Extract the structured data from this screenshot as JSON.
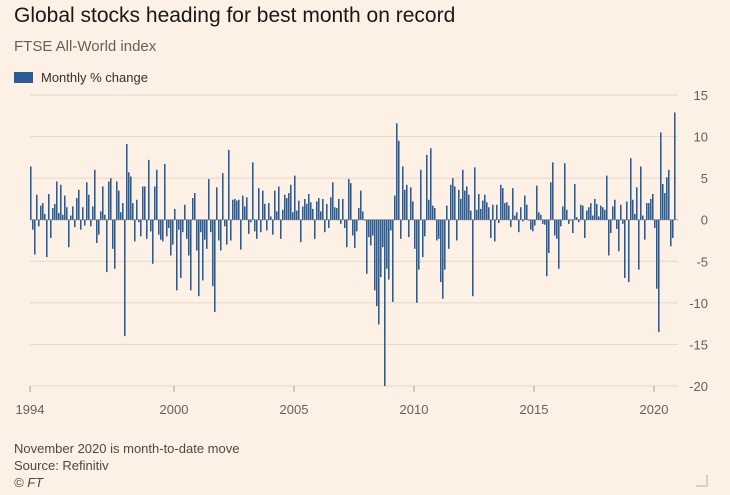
{
  "colors": {
    "bar": "#2a5c96",
    "background": "#fdf1e5",
    "grid": "#e3d7cb",
    "zero_line": "#a7a09a"
  },
  "chart_data": {
    "type": "bar",
    "title": "Global stocks heading for best month on record",
    "subtitle": "FTSE All-World index",
    "legend": [
      "Monthly % change"
    ],
    "legend_position": "top-left",
    "grid": true,
    "ylim": [
      -20,
      15
    ],
    "yticks": [
      15,
      10,
      5,
      0,
      -5,
      -10,
      -15,
      -20
    ],
    "xlim": [
      1994,
      2021
    ],
    "xticks": [
      1994,
      2000,
      2005,
      2010,
      2015,
      2020
    ],
    "y_axis_side": "right",
    "series": [
      {
        "start": "1994-01",
        "end": "2020-11",
        "values": [
          6.4,
          -1.2,
          -4.2,
          3.0,
          -0.8,
          1.7,
          2.0,
          0.7,
          -4.5,
          3.1,
          -2.2,
          1.4,
          1.9,
          4.6,
          0.8,
          4.2,
          0.6,
          2.9,
          1.5,
          -3.3,
          0.5,
          1.6,
          -0.9,
          2.6,
          3.6,
          -1.2,
          1.5,
          -0.7,
          4.5,
          3.0,
          -0.8,
          1.6,
          6.0,
          -2.8,
          -1.8,
          1.0,
          4.0,
          0.6,
          -6.3,
          4.6,
          5.0,
          -3.5,
          -5.9,
          4.6,
          3.5,
          0.9,
          2.0,
          -14.0,
          9.1,
          5.7,
          5.2,
          2.0,
          -2.6,
          2.4,
          -0.3,
          -2.0,
          4.0,
          4.0,
          -2.3,
          7.2,
          -1.4,
          -5.3,
          4.0,
          6.0,
          -1.8,
          -2.4,
          -2.6,
          6.7,
          -2.0,
          -1.0,
          -4.3,
          -3.0,
          1.3,
          -8.5,
          -1.2,
          -7.0,
          -1.5,
          1.8,
          -2.3,
          -4.3,
          -8.5,
          2.6,
          3.2,
          -3.7,
          -9.2,
          -1.5,
          -7.3,
          -2.4,
          -3.5,
          4.9,
          -1.5,
          -8.0,
          -11.1,
          3.9,
          -2.5,
          -3.7,
          5.6,
          -0.8,
          -3.0,
          8.4,
          -2.5,
          2.4,
          2.5,
          2.3,
          2.4,
          -3.6,
          2.9,
          1.6,
          2.7,
          -1.7,
          -0.3,
          6.9,
          -1.4,
          -2.3,
          3.8,
          -1.5,
          3.5,
          1.9,
          -1.3,
          2.0,
          0.4,
          -1.8,
          3.5,
          1.0,
          4.0,
          -2.3,
          1.2,
          3.0,
          2.6,
          3.2,
          4.2,
          0.9,
          5.3,
          1.1,
          2.3,
          -2.7,
          1.6,
          2.5,
          1.9,
          3.1,
          2.1,
          1.3,
          -2.3,
          2.2,
          2.6,
          1.0,
          2.5,
          -1.5,
          1.9,
          -1.0,
          2.7,
          4.5,
          1.5,
          1.4,
          2.5,
          -0.5,
          2.5,
          -1.0,
          -3.3,
          4.9,
          4.4,
          -1.9,
          -3.4,
          -1.4,
          1.4,
          3.5,
          1.0,
          -0.1,
          -6.5,
          -2.1,
          -3.1,
          -1.9,
          -8.5,
          -10.4,
          -12.6,
          -6.9,
          -3.3,
          -20.0,
          -5.9,
          -7.2,
          -1.3,
          -9.9,
          2.9,
          11.6,
          9.5,
          -2.3,
          6.4,
          3.6,
          4.2,
          -2.1,
          3.9,
          2.2,
          -3.5,
          -10.0,
          -6.0,
          6.0,
          -4.5,
          -2.0,
          7.8,
          2.4,
          8.6,
          1.7,
          1.4,
          -2.5,
          -2.3,
          -7.5,
          -9.5,
          -6.0,
          1.7,
          -3.5,
          4.2,
          5.0,
          4.0,
          -2.5,
          3.6,
          2.5,
          6.0,
          3.5,
          4.0,
          3.0,
          1.1,
          -9.2,
          6.3,
          1.2,
          3.1,
          1.3,
          2.3,
          3.0,
          2.1,
          1.5,
          -2.2,
          1.8,
          -2.6,
          1.8,
          -0.4,
          4.2,
          3.8,
          2.0,
          2.1,
          1.7,
          -0.9,
          3.8,
          0.5,
          0.9,
          -1.5,
          1.5,
          -0.2,
          2.9,
          1.8,
          -0.1,
          -1.2,
          -1.4,
          -0.7,
          4.1,
          0.9,
          0.6,
          -0.5,
          -0.6,
          -6.8,
          -4.0,
          4.5,
          6.9,
          -1.9,
          -2.3,
          -5.9,
          -0.8,
          1.6,
          6.8,
          1.2,
          -0.5,
          -0.1,
          -1.6,
          4.3,
          0.3,
          -0.3,
          1.8,
          1.7,
          -2.2,
          1.1,
          1.5,
          2.0,
          0.5,
          2.5,
          1.9,
          0.4,
          1.7,
          1.5,
          1.2,
          5.3,
          -4.3,
          -1.6,
          1.6,
          2.4,
          -1.1,
          -3.8,
          1.8,
          -0.5,
          -7.0,
          2.2,
          -7.5,
          7.4,
          2.4,
          0.7,
          3.9,
          -6.0,
          6.4,
          0.5,
          -2.4,
          2.0,
          2.0,
          2.5,
          3.1,
          -1.0,
          -8.3,
          -13.5,
          10.5,
          4.3,
          3.2,
          5.1,
          6.0,
          -3.2,
          -2.2,
          12.9
        ]
      }
    ],
    "notes": [
      "November 2020 is month-to-date move",
      "Source: Refinitiv",
      "© FT"
    ]
  }
}
